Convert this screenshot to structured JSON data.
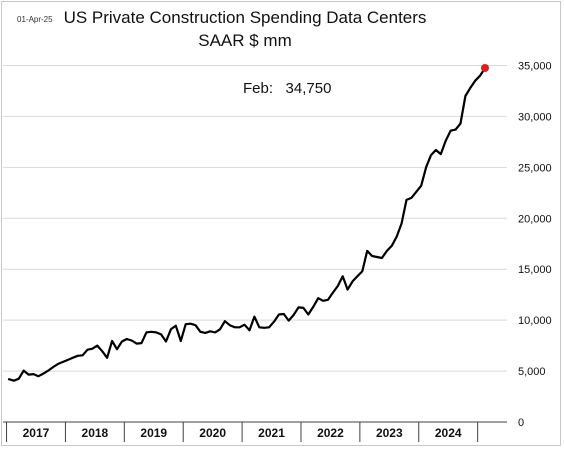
{
  "header": {
    "date_stamp": "01-Apr-25",
    "title_line1": "US Private Construction Spending Data Centers",
    "title_line2": "SAAR $ mm"
  },
  "annotation": {
    "label": "Feb:",
    "value": "34,750"
  },
  "colors": {
    "line": "#000000",
    "last_point": "#e02020",
    "grid": "#d9d9d9",
    "axis": "#404040"
  },
  "chart_data": {
    "type": "line",
    "title": "US Private Construction Spending Data Centers",
    "subtitle": "SAAR $ mm",
    "xlabel": "",
    "ylabel": "",
    "x_start": "2017-01",
    "x_end": "2025-02",
    "ylim": [
      0,
      37500
    ],
    "yticks": [
      0,
      5000,
      10000,
      15000,
      20000,
      25000,
      30000,
      35000
    ],
    "ytick_labels": [
      "0",
      "5,000",
      "10,000",
      "15,000",
      "20,000",
      "25,000",
      "30,000",
      "35,000"
    ],
    "xtick_labels": [
      "2017",
      "2018",
      "2019",
      "2020",
      "2021",
      "2022",
      "2023",
      "2024"
    ],
    "grid": "horizontal",
    "y_axis_side": "right",
    "series": [
      {
        "values": [
          4200,
          4050,
          4250,
          5050,
          4650,
          4700,
          4500,
          4750,
          5050,
          5400,
          5700,
          5900,
          6100,
          6300,
          6500,
          6550,
          7100,
          7200,
          7500,
          6950,
          6300,
          7950,
          7150,
          7900,
          8150,
          8000,
          7700,
          7750,
          8800,
          8850,
          8800,
          8600,
          7900,
          9100,
          9450,
          7950,
          9600,
          9650,
          9500,
          8850,
          8750,
          8900,
          8800,
          9100,
          9900,
          9500,
          9300,
          9300,
          9550,
          9000,
          10350,
          9300,
          9250,
          9300,
          9850,
          10550,
          10600,
          9950,
          10500,
          11250,
          11200,
          10550,
          11300,
          12150,
          11900,
          12000,
          12700,
          13350,
          14300,
          13000,
          13800,
          14300,
          14800,
          16800,
          16300,
          16200,
          16100,
          16800,
          17300,
          18200,
          19500,
          21800,
          22000,
          22600,
          23200,
          25000,
          26200,
          26700,
          26300,
          27600,
          28600,
          28700,
          29300,
          32000,
          32800,
          33500,
          34000,
          34750
        ]
      }
    ],
    "last_point": {
      "x": "2025-02",
      "y": 34750
    }
  }
}
